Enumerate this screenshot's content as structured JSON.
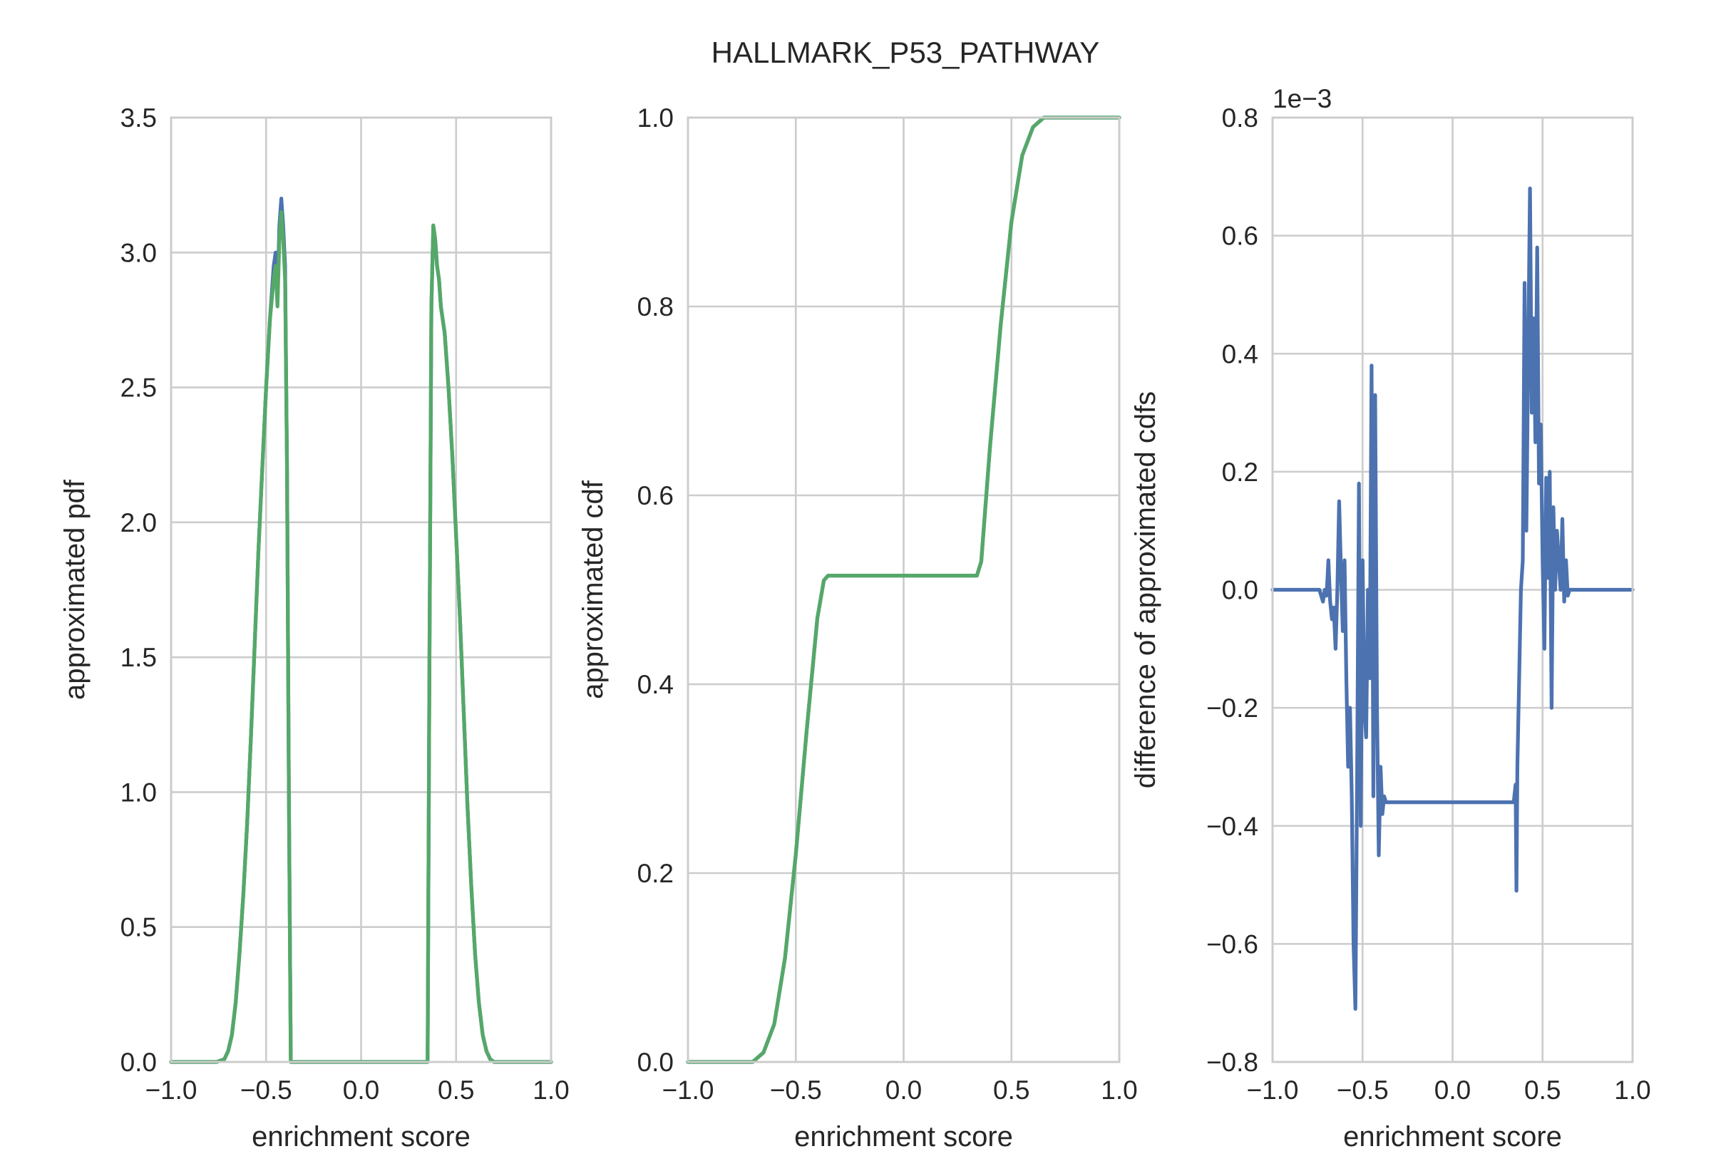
{
  "title": "HALLMARK_P53_PATHWAY",
  "colors": {
    "blue": "#4c72b0",
    "green": "#55a868",
    "grid": "#cccccc",
    "text": "#262626"
  },
  "chart_data": [
    {
      "type": "line",
      "xlabel": "enrichment score",
      "ylabel": "approximated pdf",
      "xlim": [
        -1.0,
        1.0
      ],
      "ylim": [
        0.0,
        3.5
      ],
      "xticks": [
        -1.0,
        -0.5,
        0.0,
        0.5,
        1.0
      ],
      "xtick_labels": [
        "−1.0",
        "−0.5",
        "0.0",
        "0.5",
        "1.0"
      ],
      "yticks": [
        0.0,
        0.5,
        1.0,
        1.5,
        2.0,
        2.5,
        3.0,
        3.5
      ],
      "ytick_labels": [
        "0.0",
        "0.5",
        "1.0",
        "1.5",
        "2.0",
        "2.5",
        "3.0",
        "3.5"
      ],
      "grid": true,
      "series": [
        {
          "color": "#4c72b0",
          "x": [
            -1.0,
            -0.76,
            -0.72,
            -0.7,
            -0.68,
            -0.66,
            -0.64,
            -0.62,
            -0.6,
            -0.58,
            -0.56,
            -0.54,
            -0.52,
            -0.5,
            -0.48,
            -0.46,
            -0.45,
            -0.44,
            -0.43,
            -0.42,
            -0.41,
            -0.4,
            -0.39,
            -0.38,
            -0.37,
            -0.36,
            -0.35,
            0.34,
            0.35,
            0.36,
            0.37,
            0.38,
            0.39,
            0.4,
            0.41,
            0.42,
            0.43,
            0.44,
            0.46,
            0.48,
            0.5,
            0.52,
            0.54,
            0.56,
            0.58,
            0.6,
            0.62,
            0.64,
            0.66,
            0.68,
            0.7,
            0.72,
            0.76,
            1.0
          ],
          "y": [
            0.0,
            0.0,
            0.01,
            0.04,
            0.1,
            0.22,
            0.4,
            0.62,
            0.88,
            1.2,
            1.55,
            1.9,
            2.2,
            2.5,
            2.75,
            2.95,
            3.0,
            2.85,
            3.1,
            3.2,
            3.1,
            2.95,
            2.2,
            1.0,
            0.0,
            0.0,
            0.0,
            0.0,
            0.0,
            1.5,
            2.8,
            3.1,
            3.05,
            2.95,
            2.9,
            2.8,
            2.75,
            2.7,
            2.5,
            2.25,
            1.95,
            1.65,
            1.3,
            0.95,
            0.65,
            0.4,
            0.22,
            0.1,
            0.04,
            0.01,
            0.0,
            0.0,
            0.0,
            0.0
          ]
        },
        {
          "color": "#55a868",
          "x": [
            -1.0,
            -0.76,
            -0.72,
            -0.7,
            -0.68,
            -0.66,
            -0.64,
            -0.62,
            -0.6,
            -0.58,
            -0.56,
            -0.54,
            -0.52,
            -0.5,
            -0.48,
            -0.46,
            -0.45,
            -0.44,
            -0.43,
            -0.42,
            -0.41,
            -0.4,
            -0.39,
            -0.38,
            -0.37,
            -0.36,
            -0.35,
            0.34,
            0.35,
            0.36,
            0.37,
            0.38,
            0.39,
            0.4,
            0.41,
            0.42,
            0.43,
            0.44,
            0.46,
            0.48,
            0.5,
            0.52,
            0.54,
            0.56,
            0.58,
            0.6,
            0.62,
            0.64,
            0.66,
            0.68,
            0.7,
            0.72,
            0.76,
            1.0
          ],
          "y": [
            0.0,
            0.0,
            0.01,
            0.04,
            0.1,
            0.22,
            0.4,
            0.62,
            0.88,
            1.2,
            1.55,
            1.9,
            2.2,
            2.5,
            2.75,
            2.9,
            2.95,
            2.8,
            3.05,
            3.15,
            3.05,
            2.9,
            2.2,
            1.0,
            0.0,
            0.0,
            0.0,
            0.0,
            0.0,
            1.5,
            2.8,
            3.1,
            3.05,
            2.95,
            2.9,
            2.8,
            2.75,
            2.7,
            2.5,
            2.25,
            1.95,
            1.65,
            1.3,
            0.95,
            0.65,
            0.4,
            0.22,
            0.1,
            0.04,
            0.01,
            0.0,
            0.0,
            0.0,
            0.0
          ]
        }
      ]
    },
    {
      "type": "line",
      "xlabel": "enrichment score",
      "ylabel": "approximated cdf",
      "xlim": [
        -1.0,
        1.0
      ],
      "ylim": [
        0.0,
        1.0
      ],
      "xticks": [
        -1.0,
        -0.5,
        0.0,
        0.5,
        1.0
      ],
      "xtick_labels": [
        "−1.0",
        "−0.5",
        "0.0",
        "0.5",
        "1.0"
      ],
      "yticks": [
        0.0,
        0.2,
        0.4,
        0.6,
        0.8,
        1.0
      ],
      "ytick_labels": [
        "0.0",
        "0.2",
        "0.4",
        "0.6",
        "0.8",
        "1.0"
      ],
      "grid": true,
      "series": [
        {
          "color": "#4c72b0",
          "x": [
            -1.0,
            -0.7,
            -0.65,
            -0.6,
            -0.55,
            -0.5,
            -0.45,
            -0.4,
            -0.37,
            -0.35,
            0.34,
            0.36,
            0.4,
            0.45,
            0.5,
            0.55,
            0.6,
            0.65,
            1.0
          ],
          "y": [
            0.0,
            0.0,
            0.01,
            0.04,
            0.11,
            0.22,
            0.35,
            0.47,
            0.51,
            0.515,
            0.515,
            0.53,
            0.65,
            0.78,
            0.89,
            0.96,
            0.99,
            1.0,
            1.0
          ]
        },
        {
          "color": "#55a868",
          "x": [
            -1.0,
            -0.7,
            -0.65,
            -0.6,
            -0.55,
            -0.5,
            -0.45,
            -0.4,
            -0.37,
            -0.35,
            0.34,
            0.36,
            0.4,
            0.45,
            0.5,
            0.55,
            0.6,
            0.65,
            1.0
          ],
          "y": [
            0.0,
            0.0,
            0.01,
            0.04,
            0.11,
            0.22,
            0.35,
            0.47,
            0.51,
            0.515,
            0.515,
            0.53,
            0.65,
            0.78,
            0.89,
            0.96,
            0.99,
            1.0,
            1.0
          ]
        }
      ]
    },
    {
      "type": "line",
      "xlabel": "enrichment score",
      "ylabel": "difference of approximated cdfs",
      "offset_label": "1e−3",
      "xlim": [
        -1.0,
        1.0
      ],
      "ylim": [
        -0.8,
        0.8
      ],
      "xticks": [
        -1.0,
        -0.5,
        0.0,
        0.5,
        1.0
      ],
      "xtick_labels": [
        "−1.0",
        "−0.5",
        "0.0",
        "0.5",
        "1.0"
      ],
      "yticks": [
        -0.8,
        -0.6,
        -0.4,
        -0.2,
        0.0,
        0.2,
        0.4,
        0.6,
        0.8
      ],
      "ytick_labels": [
        "−0.8",
        "−0.6",
        "−0.4",
        "−0.2",
        "0.0",
        "0.2",
        "0.4",
        "0.6",
        "0.8"
      ],
      "grid": true,
      "series": [
        {
          "color": "#4c72b0",
          "x": [
            -1.0,
            -0.74,
            -0.72,
            -0.71,
            -0.7,
            -0.69,
            -0.68,
            -0.67,
            -0.66,
            -0.65,
            -0.64,
            -0.63,
            -0.62,
            -0.61,
            -0.6,
            -0.59,
            -0.58,
            -0.57,
            -0.56,
            -0.55,
            -0.54,
            -0.53,
            -0.52,
            -0.51,
            -0.5,
            -0.49,
            -0.48,
            -0.47,
            -0.46,
            -0.45,
            -0.44,
            -0.43,
            -0.42,
            -0.41,
            -0.4,
            -0.39,
            -0.38,
            -0.37,
            -0.36,
            -0.35,
            0.34,
            0.35,
            0.355,
            0.36,
            0.37,
            0.38,
            0.39,
            0.4,
            0.41,
            0.42,
            0.43,
            0.44,
            0.45,
            0.46,
            0.47,
            0.48,
            0.49,
            0.5,
            0.51,
            0.52,
            0.53,
            0.54,
            0.55,
            0.56,
            0.57,
            0.58,
            0.59,
            0.6,
            0.61,
            0.62,
            0.63,
            0.64,
            0.65,
            0.66,
            0.67,
            0.68,
            0.69,
            0.7,
            0.72,
            0.75,
            1.0
          ],
          "y": [
            0.0,
            0.0,
            -0.02,
            0.0,
            -0.01,
            0.05,
            -0.02,
            -0.05,
            -0.03,
            -0.1,
            0.0,
            0.15,
            0.03,
            -0.07,
            0.05,
            -0.15,
            -0.3,
            -0.2,
            -0.35,
            -0.6,
            -0.71,
            -0.3,
            0.18,
            -0.4,
            0.05,
            -0.2,
            -0.25,
            0.0,
            -0.15,
            0.38,
            -0.35,
            0.33,
            -0.2,
            -0.45,
            -0.3,
            -0.38,
            -0.35,
            -0.36,
            -0.36,
            -0.36,
            -0.36,
            -0.33,
            -0.51,
            -0.3,
            -0.15,
            0.0,
            0.05,
            0.52,
            0.1,
            0.4,
            0.68,
            0.3,
            0.46,
            0.25,
            0.58,
            0.18,
            0.28,
            0.05,
            -0.1,
            0.19,
            0.02,
            0.2,
            -0.2,
            0.14,
            0.0,
            0.1,
            0.05,
            0.0,
            0.12,
            -0.02,
            0.05,
            -0.01,
            0.0,
            0.0,
            0.0,
            0.0,
            0.0,
            0.0,
            0.0,
            0.0,
            0.0
          ]
        }
      ]
    }
  ]
}
